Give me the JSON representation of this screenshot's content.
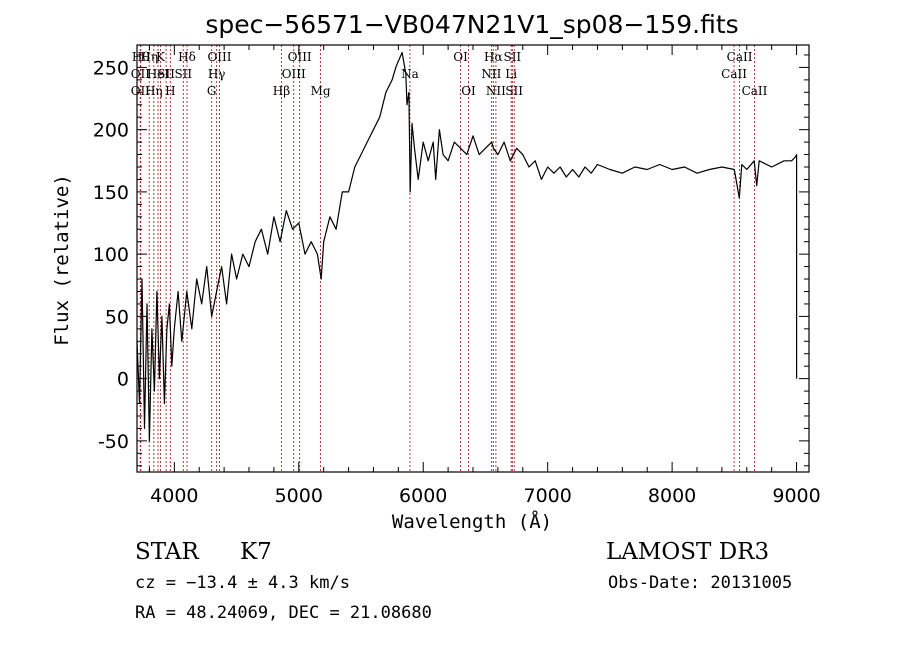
{
  "chart_data": {
    "type": "line",
    "title": "spec−56571−VB047N21V1_sp08−159.fits",
    "xlabel": "Wavelength (Å)",
    "ylabel": "Flux (relative)",
    "xlim": [
      3700,
      9100
    ],
    "ylim": [
      -75,
      268
    ],
    "x_ticks": [
      4000,
      5000,
      6000,
      7000,
      8000,
      9000
    ],
    "y_ticks": [
      -50,
      0,
      50,
      100,
      150,
      200,
      250
    ],
    "grid": false,
    "series": [
      {
        "x": [
          3700,
          3720,
          3740,
          3760,
          3780,
          3800,
          3820,
          3840,
          3860,
          3880,
          3900,
          3920,
          3940,
          3960,
          3980,
          4000,
          4030,
          4060,
          4100,
          4140,
          4180,
          4220,
          4260,
          4300,
          4340,
          4380,
          4420,
          4460,
          4500,
          4550,
          4600,
          4650,
          4700,
          4750,
          4800,
          4850,
          4900,
          4950,
          5000,
          5050,
          5100,
          5150,
          5180,
          5200,
          5250,
          5300,
          5350,
          5400,
          5450,
          5500,
          5550,
          5600,
          5650,
          5700,
          5750,
          5780,
          5800,
          5830,
          5860,
          5870,
          5885,
          5895,
          5910,
          5930,
          5960,
          6000,
          6040,
          6080,
          6100,
          6130,
          6160,
          6200,
          6250,
          6300,
          6350,
          6400,
          6450,
          6500,
          6550,
          6565,
          6600,
          6650,
          6700,
          6750,
          6800,
          6850,
          6900,
          6950,
          7000,
          7050,
          7100,
          7150,
          7200,
          7250,
          7300,
          7350,
          7400,
          7500,
          7600,
          7700,
          7800,
          7900,
          8000,
          8100,
          8200,
          8300,
          8400,
          8500,
          8540,
          8560,
          8600,
          8660,
          8680,
          8700,
          8800,
          8900,
          8960,
          8990,
          9000,
          9000
        ],
        "y": [
          30,
          -20,
          80,
          -40,
          60,
          -50,
          40,
          -10,
          70,
          0,
          50,
          -20,
          40,
          60,
          10,
          40,
          70,
          30,
          70,
          40,
          80,
          60,
          90,
          50,
          70,
          90,
          60,
          100,
          80,
          100,
          90,
          110,
          120,
          100,
          130,
          110,
          135,
          120,
          125,
          100,
          110,
          100,
          80,
          110,
          130,
          120,
          150,
          150,
          170,
          180,
          190,
          200,
          210,
          230,
          240,
          250,
          255,
          262,
          245,
          220,
          230,
          150,
          205,
          185,
          160,
          190,
          175,
          190,
          160,
          200,
          180,
          175,
          190,
          185,
          180,
          195,
          180,
          185,
          190,
          185,
          180,
          190,
          175,
          185,
          180,
          170,
          175,
          160,
          170,
          165,
          170,
          162,
          168,
          162,
          170,
          165,
          172,
          168,
          165,
          170,
          168,
          172,
          168,
          170,
          165,
          168,
          170,
          168,
          145,
          172,
          168,
          175,
          155,
          175,
          170,
          175,
          175,
          178,
          180,
          0
        ]
      }
    ],
    "line_markers": [
      {
        "x": 3730,
        "row": 1,
        "label": "Hθ"
      },
      {
        "x": 3727,
        "row": 2,
        "label": "OII"
      },
      {
        "x": 3727,
        "row": 3,
        "label": "OII"
      },
      {
        "x": 3798,
        "row": 1,
        "label": "Hη"
      },
      {
        "x": 3835,
        "row": 3,
        "label": "Hη"
      },
      {
        "x": 3869,
        "row": 2,
        "label": "HeI"
      },
      {
        "x": 3889,
        "row": 1,
        "label": "K"
      },
      {
        "x": 3934,
        "row": 2,
        "label": "SII"
      },
      {
        "x": 3968,
        "row": 3,
        "label": "H"
      },
      {
        "x": 4102,
        "row": 1,
        "label": "Hδ"
      },
      {
        "x": 4072,
        "row": 2,
        "label": "SII"
      },
      {
        "x": 4300,
        "row": 3,
        "label": "G"
      },
      {
        "x": 4340,
        "row": 2,
        "label": "Hγ"
      },
      {
        "x": 4363,
        "row": 1,
        "label": "OIII"
      },
      {
        "x": 4861,
        "row": 3,
        "label": "Hβ"
      },
      {
        "x": 4959,
        "row": 2,
        "label": "OIII"
      },
      {
        "x": 5007,
        "row": 1,
        "label": "OIII"
      },
      {
        "x": 5175,
        "row": 3,
        "label": "Mg"
      },
      {
        "x": 5893,
        "row": 2,
        "label": "Na"
      },
      {
        "x": 6300,
        "row": 1,
        "label": "OI"
      },
      {
        "x": 6364,
        "row": 3,
        "label": "OI"
      },
      {
        "x": 6548,
        "row": 2,
        "label": "NII"
      },
      {
        "x": 6563,
        "row": 1,
        "label": "Hα"
      },
      {
        "x": 6584,
        "row": 3,
        "label": "NII"
      },
      {
        "x": 6707,
        "row": 2,
        "label": "Li"
      },
      {
        "x": 6716,
        "row": 1,
        "label": "SII"
      },
      {
        "x": 6731,
        "row": 3,
        "label": "SII"
      },
      {
        "x": 8498,
        "row": 2,
        "label": "CaII"
      },
      {
        "x": 8542,
        "row": 1,
        "label": "CaII"
      },
      {
        "x": 8662,
        "row": 3,
        "label": "CaII"
      }
    ]
  },
  "info": {
    "class": "STAR",
    "subclass": "K7",
    "survey": "LAMOST DR3",
    "cz": "cz = −13.4 ± 4.3 km/s",
    "obs_date": "Obs-Date: 20131005",
    "radec": "RA =  48.24069, DEC =  21.08680"
  }
}
